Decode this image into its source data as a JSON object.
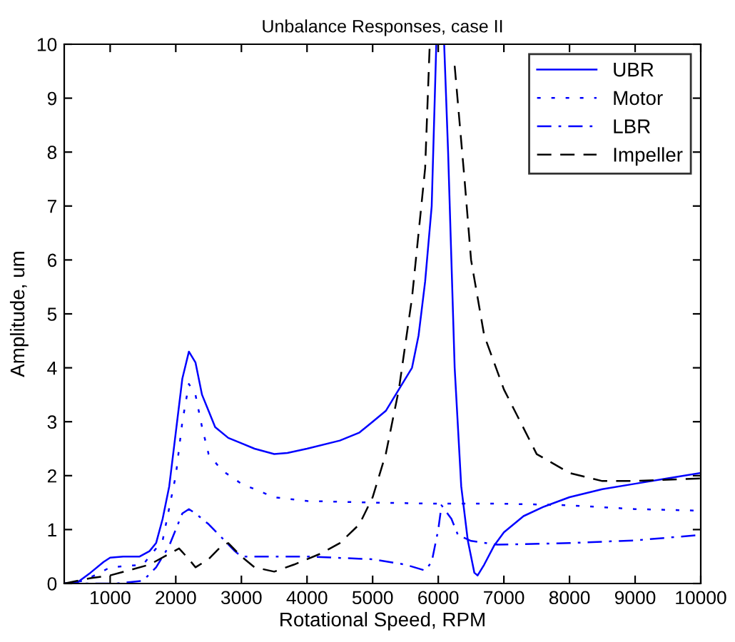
{
  "chart_data": {
    "type": "line",
    "title": "Unbalance Responses, case II",
    "xlabel": "Rotational Speed, RPM",
    "ylabel": "Amplitude, um",
    "xlim": [
      300,
      10000
    ],
    "ylim": [
      0,
      10
    ],
    "xticks": [
      1000,
      2000,
      3000,
      4000,
      5000,
      6000,
      7000,
      8000,
      9000,
      10000
    ],
    "yticks": [
      0,
      1,
      2,
      3,
      4,
      5,
      6,
      7,
      8,
      9,
      10
    ],
    "grid": false,
    "legend": "top right",
    "marker": "none",
    "series": [
      {
        "name": "UBR",
        "color": "#0000ff",
        "line_style": "solid",
        "x": [
          300,
          500,
          700,
          900,
          1000,
          1200,
          1450,
          1600,
          1700,
          1800,
          1900,
          2000,
          2100,
          2200,
          2300,
          2400,
          2500,
          2600,
          2800,
          3000,
          3200,
          3500,
          3700,
          4000,
          4500,
          4800,
          5000,
          5200,
          5400,
          5600,
          5700,
          5800,
          5900,
          5970,
          6030,
          6090,
          6150,
          6200,
          6250,
          6350,
          6450,
          6550,
          6600,
          6700,
          6850,
          7000,
          7300,
          7600,
          8000,
          8500,
          9000,
          9500,
          10000
        ],
        "values": [
          0,
          0.02,
          0.2,
          0.4,
          0.48,
          0.5,
          0.5,
          0.6,
          0.75,
          1.2,
          1.8,
          2.8,
          3.8,
          4.3,
          4.1,
          3.5,
          3.2,
          2.9,
          2.7,
          2.6,
          2.5,
          2.4,
          2.42,
          2.5,
          2.65,
          2.8,
          3.0,
          3.2,
          3.6,
          4.0,
          4.6,
          5.6,
          7.0,
          10,
          null,
          10,
          8,
          6,
          4,
          1.8,
          0.8,
          0.2,
          0.15,
          0.35,
          0.7,
          0.95,
          1.25,
          1.42,
          1.6,
          1.75,
          1.85,
          1.95,
          2.05
        ]
      },
      {
        "name": "Motor",
        "color": "#0000ff",
        "line_style": "dotted",
        "x": [
          300,
          600,
          1000,
          1500,
          1800,
          2000,
          2100,
          2200,
          2300,
          2400,
          2500,
          2700,
          3000,
          3500,
          4000,
          5000,
          6000,
          7000,
          8000,
          9000,
          10000
        ],
        "values": [
          0,
          0.05,
          0.3,
          0.35,
          0.8,
          2.0,
          3.0,
          3.7,
          3.5,
          2.9,
          2.4,
          2.1,
          1.85,
          1.6,
          1.53,
          1.5,
          1.48,
          1.48,
          1.45,
          1.38,
          1.35
        ]
      },
      {
        "name": "LBR",
        "color": "#0000ff",
        "line_style": "dashdot",
        "x": [
          300,
          1100,
          1500,
          1700,
          1900,
          2100,
          2200,
          2300,
          2500,
          2700,
          2900,
          3000,
          4000,
          5000,
          5500,
          5800,
          5900,
          6000,
          6050,
          6200,
          6300,
          6500,
          6900,
          8000,
          9000,
          10000
        ],
        "values": [
          0,
          0,
          0.05,
          0.3,
          0.7,
          1.3,
          1.38,
          1.3,
          1.1,
          0.85,
          0.6,
          0.5,
          0.5,
          0.45,
          0.35,
          0.24,
          0.4,
          1.0,
          1.45,
          1.2,
          0.9,
          0.79,
          0.72,
          0.75,
          0.8,
          0.9
        ]
      },
      {
        "name": "Impeller",
        "color": "#000000",
        "line_style": "dashed",
        "x": [
          300,
          700,
          1000,
          1300,
          1600,
          1900,
          2050,
          2200,
          2300,
          2500,
          2700,
          2800,
          3000,
          3200,
          3500,
          3800,
          4200,
          4500,
          4800,
          5000,
          5200,
          5400,
          5600,
          5800,
          5870,
          6050,
          6250,
          6400,
          6500,
          6700,
          7000,
          7500,
          8000,
          8500,
          9000,
          10000
        ],
        "values": [
          0,
          0.1,
          0.15,
          0.25,
          0.35,
          0.55,
          0.65,
          0.45,
          0.3,
          0.45,
          0.7,
          0.75,
          0.5,
          0.3,
          0.22,
          0.35,
          0.55,
          0.75,
          1.1,
          1.6,
          2.4,
          3.6,
          5.3,
          7.7,
          10,
          null,
          9.6,
          7.5,
          6.0,
          4.6,
          3.6,
          2.4,
          2.05,
          1.9,
          1.9,
          1.95
        ]
      }
    ]
  }
}
